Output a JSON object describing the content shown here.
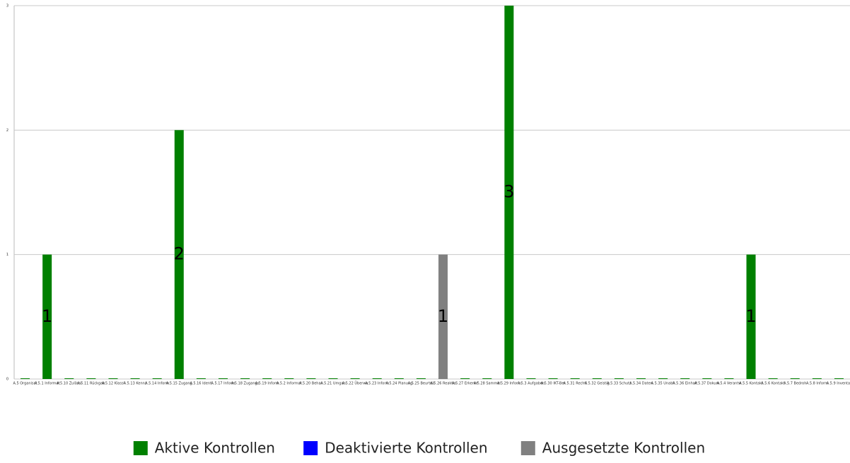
{
  "chart_data": {
    "type": "bar",
    "categories": [
      "A.5 Organisat",
      "A.5.1 Informat",
      "A.5.10 Zulässi",
      "A.5.11 Rückgab",
      "A.5.12 Klassi",
      "A.5.13 Kennz",
      "A.5.14 Inform",
      "A.5.15 Zugang",
      "A.5.16 Identi",
      "A.5.17 Inform",
      "A.5.18 Zugangs",
      "A.5.19 Inform",
      "A.5.2 Informat",
      "A.5.20 Behan",
      "A.5.21 Umgan",
      "A.5.22 Überwa",
      "A.5.23 Inform",
      "A.5.24 Planung",
      "A.5.25 Beurteil",
      "A.5.26 Reaktio",
      "A.5.27 Erkennt",
      "A.5.28 Sammel",
      "A.5.29 Inform",
      "A.5.3 Aufgaben",
      "A.5.30 IKT-Ber",
      "A.5.31 Rechtl",
      "A.5.32 Geistig",
      "A.5.33 Schutz",
      "A.5.34 Daten",
      "A.5.35 Unabh",
      "A.5.36 Einhalt",
      "A.5.37 Dokum",
      "A.5.4 Verantw",
      "A.5.5 Kontakt",
      "A.5.6 Kontakt",
      "A.5.7 Bedroh",
      "A.5.8 Inform",
      "A.5.9 Inventar"
    ],
    "series": [
      {
        "name": "Aktive Kontrollen",
        "color": "#008000",
        "values": [
          0,
          1,
          0,
          0,
          0,
          0,
          0,
          2,
          0,
          0,
          0,
          0,
          0,
          0,
          0,
          0,
          0,
          0,
          0,
          0,
          0,
          0,
          3,
          0,
          0,
          0,
          0,
          0,
          0,
          0,
          0,
          0,
          0,
          1,
          0,
          0,
          0,
          0
        ]
      },
      {
        "name": "Deaktivierte Kontrollen",
        "color": "#0000ff",
        "values": [
          0,
          0,
          0,
          0,
          0,
          0,
          0,
          0,
          0,
          0,
          0,
          0,
          0,
          0,
          0,
          0,
          0,
          0,
          0,
          0,
          0,
          0,
          0,
          0,
          0,
          0,
          0,
          0,
          0,
          0,
          0,
          0,
          0,
          0,
          0,
          0,
          0,
          0
        ]
      },
      {
        "name": "Ausgesetzte Kontrollen",
        "color": "#808080",
        "values": [
          0,
          0,
          0,
          0,
          0,
          0,
          0,
          0,
          0,
          0,
          0,
          0,
          0,
          0,
          0,
          0,
          0,
          0,
          0,
          1,
          0,
          0,
          0,
          0,
          0,
          0,
          0,
          0,
          0,
          0,
          0,
          0,
          0,
          0,
          0,
          0,
          0,
          0
        ]
      }
    ],
    "ylim": [
      0,
      3
    ],
    "yticks": [
      0,
      1,
      2,
      3
    ],
    "grid": true,
    "legend": "bottom"
  }
}
